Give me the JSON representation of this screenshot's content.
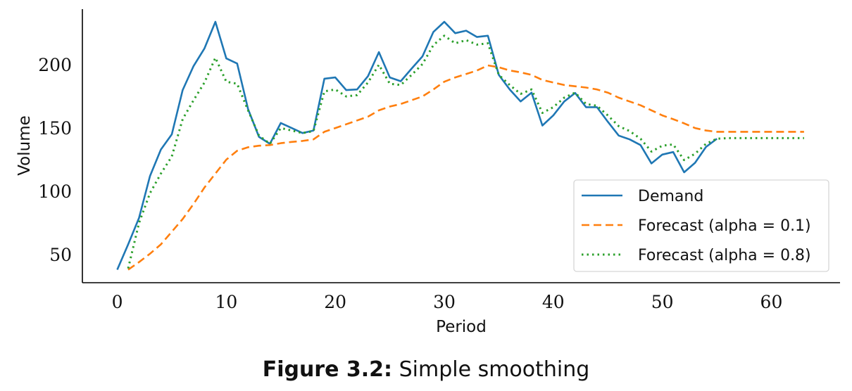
{
  "caption": {
    "label": "Figure 3.2:",
    "text": "Simple smoothing"
  },
  "chart_data": {
    "type": "line",
    "title": "",
    "xlabel": "Period",
    "ylabel": "Volume",
    "xlim": [
      -3.2,
      66.3
    ],
    "ylim": [
      27.7,
      244
    ],
    "xticks": [
      0,
      10,
      20,
      30,
      40,
      50,
      60
    ],
    "xtick_labels": [
      "0",
      "10",
      "20",
      "30",
      "40",
      "50",
      "60"
    ],
    "yticks": [
      50,
      100,
      150,
      200
    ],
    "ytick_labels": [
      "50",
      "100",
      "150",
      "200"
    ],
    "grid": false,
    "legend_position": "bottom-right",
    "series": [
      {
        "name": "Demand",
        "color": "#1f77b4",
        "style": "solid",
        "x_start": 0,
        "values": [
          38,
          58,
          79,
          112,
          133,
          145,
          180,
          199,
          213,
          234,
          205,
          201,
          165,
          143,
          137.5,
          154,
          150,
          146,
          148,
          189,
          190,
          180,
          180.5,
          191,
          210,
          190,
          187,
          197,
          206.7,
          226,
          234,
          225,
          227,
          222,
          223,
          192,
          180.5,
          171,
          178,
          152,
          160,
          171,
          177.7,
          166.5,
          166.5,
          155,
          144,
          141,
          136.5,
          122,
          129,
          131,
          115,
          122.5,
          135,
          141.5
        ]
      },
      {
        "name": "Forecast (alpha = 0.1)",
        "color": "#ff7f0e",
        "style": "dashed",
        "x_start": 1,
        "values": [
          38,
          44,
          50.6,
          58,
          68,
          78,
          90,
          103,
          114,
          125,
          132,
          134.8,
          136,
          136.5,
          138,
          139,
          139.8,
          141,
          147,
          150,
          153,
          156,
          159,
          164,
          167,
          169,
          172,
          175,
          180.5,
          186.6,
          190,
          192.7,
          195.5,
          199.5,
          198,
          195.5,
          194,
          192,
          188,
          186,
          184,
          183,
          182,
          180.5,
          178,
          174,
          171,
          168,
          164,
          160,
          157,
          153.7,
          150,
          148,
          147,
          147,
          147,
          147,
          147,
          147,
          147,
          147,
          147
        ]
      },
      {
        "name": "Forecast (alpha = 0.8)",
        "color": "#2ca02c",
        "style": "dotted",
        "x_start": 1,
        "values": [
          39,
          75,
          98.5,
          114,
          127.5,
          157,
          172,
          186,
          205.6,
          186.6,
          185,
          164,
          144,
          137.5,
          150,
          148,
          146,
          147.6,
          179,
          180.5,
          175,
          176,
          186,
          200,
          185,
          184,
          192,
          200.6,
          215.6,
          223,
          217,
          219.5,
          216,
          217,
          192,
          184,
          177,
          180.5,
          162,
          166.5,
          174,
          178,
          169,
          167.6,
          160,
          151.5,
          147.6,
          141.5,
          131.4,
          136,
          137,
          124.7,
          129.7,
          137.5,
          141.5,
          142,
          142,
          142,
          142,
          142,
          142,
          142,
          142
        ]
      }
    ]
  }
}
